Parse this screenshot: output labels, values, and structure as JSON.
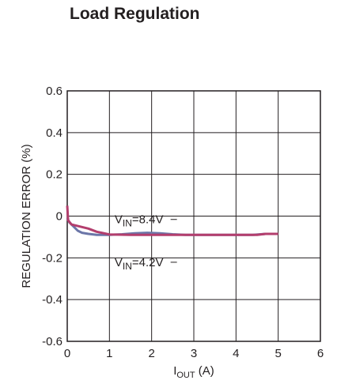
{
  "chart_data": {
    "type": "line",
    "title": "Load Regulation",
    "xlabel_main": "I",
    "xlabel_sub": "OUT",
    "xlabel_unit": " (A)",
    "ylabel": "REGULATION ERROR (%)",
    "xlim": [
      0,
      6
    ],
    "ylim": [
      -0.6,
      0.6
    ],
    "x_ticks": [
      "0",
      "1",
      "2",
      "3",
      "4",
      "5",
      "6"
    ],
    "y_ticks": [
      "0.6",
      "0.4",
      "0.2",
      "0",
      "-0.2",
      "-0.4",
      "-0.6"
    ],
    "x_tick_values": [
      0,
      1,
      2,
      3,
      4,
      5,
      6
    ],
    "y_tick_values": [
      0.6,
      0.4,
      0.2,
      0,
      -0.2,
      -0.4,
      -0.6
    ],
    "grid": true,
    "series": [
      {
        "color": "#6b76a8",
        "points": [
          [
            0,
            -0.01
          ],
          [
            0.05,
            -0.03
          ],
          [
            0.15,
            -0.05
          ],
          [
            0.25,
            -0.07
          ],
          [
            0.35,
            -0.08
          ],
          [
            0.5,
            -0.085
          ],
          [
            0.7,
            -0.09
          ],
          [
            1.0,
            -0.09
          ],
          [
            1.3,
            -0.087
          ],
          [
            1.6,
            -0.082
          ],
          [
            1.9,
            -0.08
          ],
          [
            2.2,
            -0.082
          ],
          [
            2.5,
            -0.087
          ],
          [
            2.8,
            -0.09
          ],
          [
            3.2,
            -0.09
          ],
          [
            3.6,
            -0.09
          ],
          [
            4.0,
            -0.09
          ],
          [
            4.4,
            -0.09
          ],
          [
            4.7,
            -0.085
          ],
          [
            5.0,
            -0.085
          ]
        ]
      },
      {
        "color": "#b33e6d",
        "points": [
          [
            0,
            0.05
          ],
          [
            0.02,
            -0.02
          ],
          [
            0.1,
            -0.04
          ],
          [
            0.3,
            -0.05
          ],
          [
            0.5,
            -0.06
          ],
          [
            0.7,
            -0.075
          ],
          [
            1.0,
            -0.088
          ],
          [
            1.5,
            -0.09
          ],
          [
            2.0,
            -0.09
          ],
          [
            2.5,
            -0.09
          ],
          [
            3.0,
            -0.09
          ],
          [
            3.5,
            -0.09
          ],
          [
            4.0,
            -0.09
          ],
          [
            4.5,
            -0.09
          ],
          [
            4.7,
            -0.085
          ],
          [
            5.0,
            -0.085
          ]
        ]
      }
    ],
    "annotations": [
      {
        "text_main": "V",
        "text_sub": "IN",
        "text_rest": "=8.4V",
        "x": 1.7,
        "y": -0.035,
        "leader_x": 2.45
      },
      {
        "text_main": "V",
        "text_sub": "IN",
        "text_rest": "=4.2V",
        "x": 1.7,
        "y": -0.24,
        "leader_x": 2.45
      }
    ]
  }
}
